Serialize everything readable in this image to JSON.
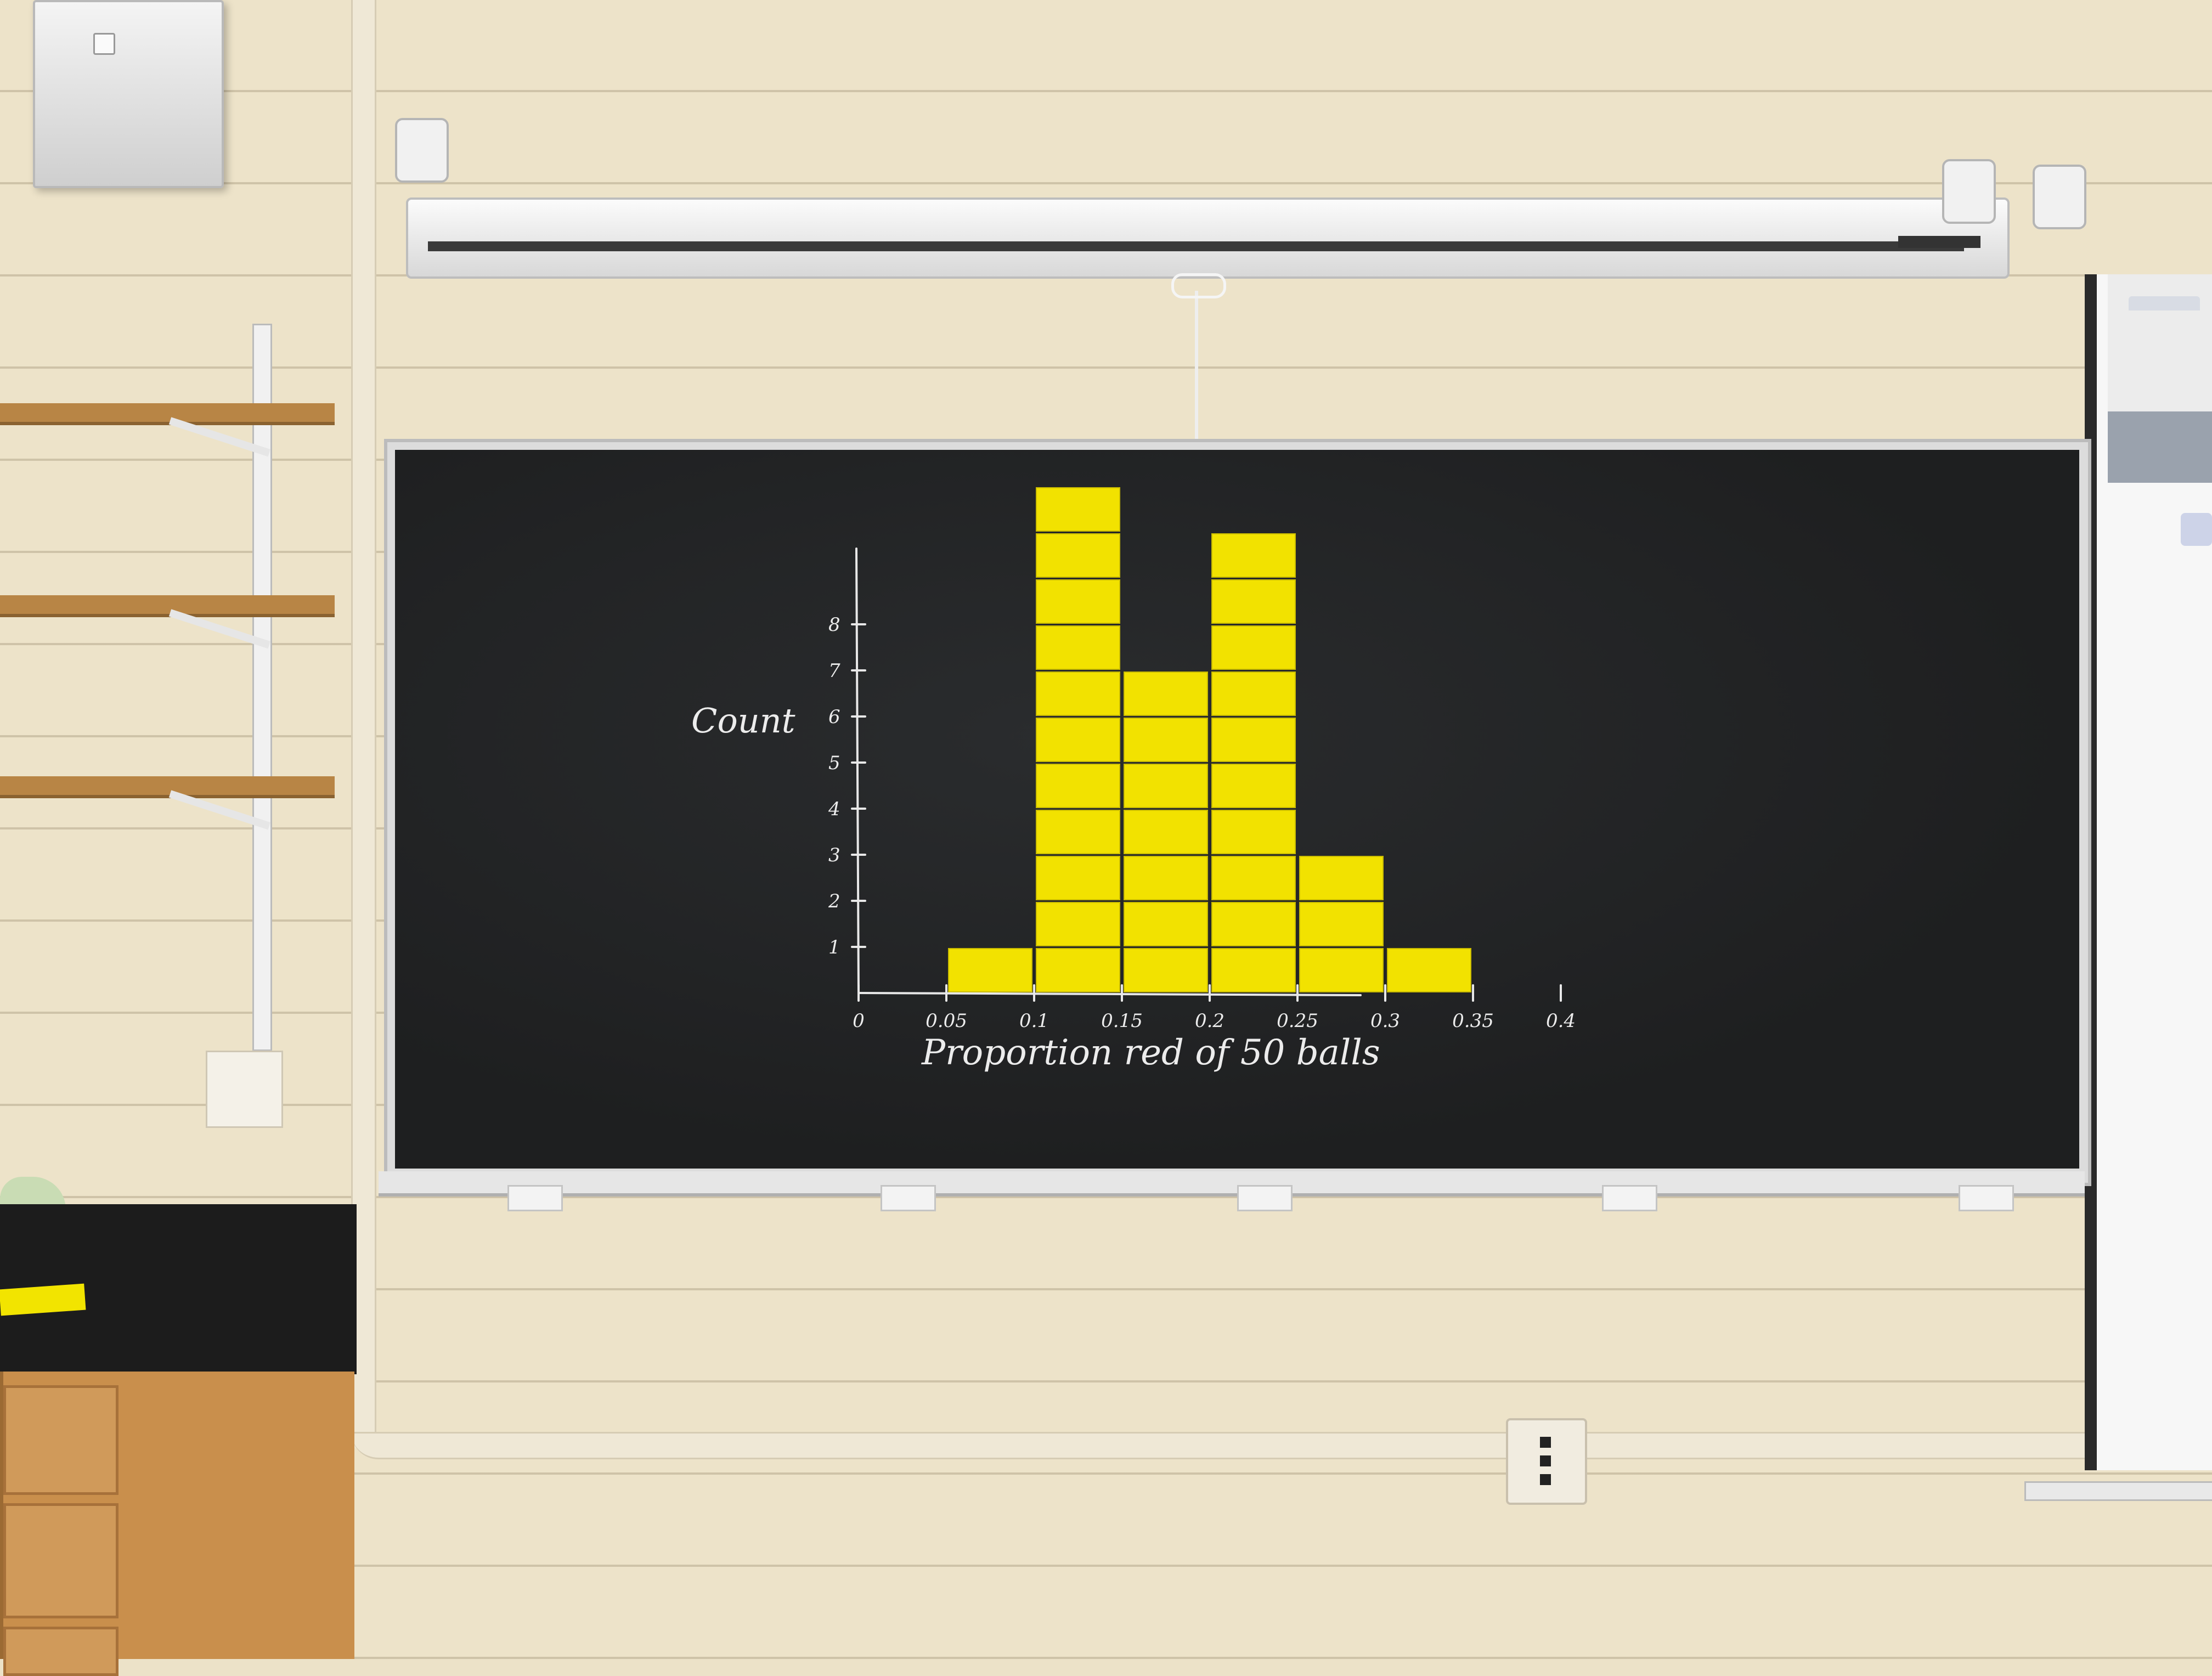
{
  "chart_data": {
    "type": "bar",
    "title": "",
    "xlabel": "Proportion red of 50 balls",
    "ylabel": "Count",
    "x_ticks": [
      "0",
      "0.05",
      "0.1",
      "0.15",
      "0.2",
      "0.25",
      "0.3",
      "0.35",
      "0.4"
    ],
    "y_ticks": [
      "1",
      "2",
      "3",
      "4",
      "5",
      "6",
      "7",
      "8"
    ],
    "bin_width": 0.05,
    "bins": [
      {
        "left": 0.05,
        "count": 1
      },
      {
        "left": 0.1,
        "count": 11
      },
      {
        "left": 0.15,
        "count": 7
      },
      {
        "left": 0.2,
        "count": 10
      },
      {
        "left": 0.25,
        "count": 3
      },
      {
        "left": 0.3,
        "count": 1
      }
    ],
    "xlim": [
      0,
      0.45
    ],
    "ylim": [
      0,
      11
    ],
    "grid": false,
    "bar_color": "#f2e200"
  },
  "colors": {
    "board": "#1f2021",
    "chalk": "#e8e8e8",
    "sticky_note": "#f2e200",
    "wall": "#ede3c9"
  }
}
